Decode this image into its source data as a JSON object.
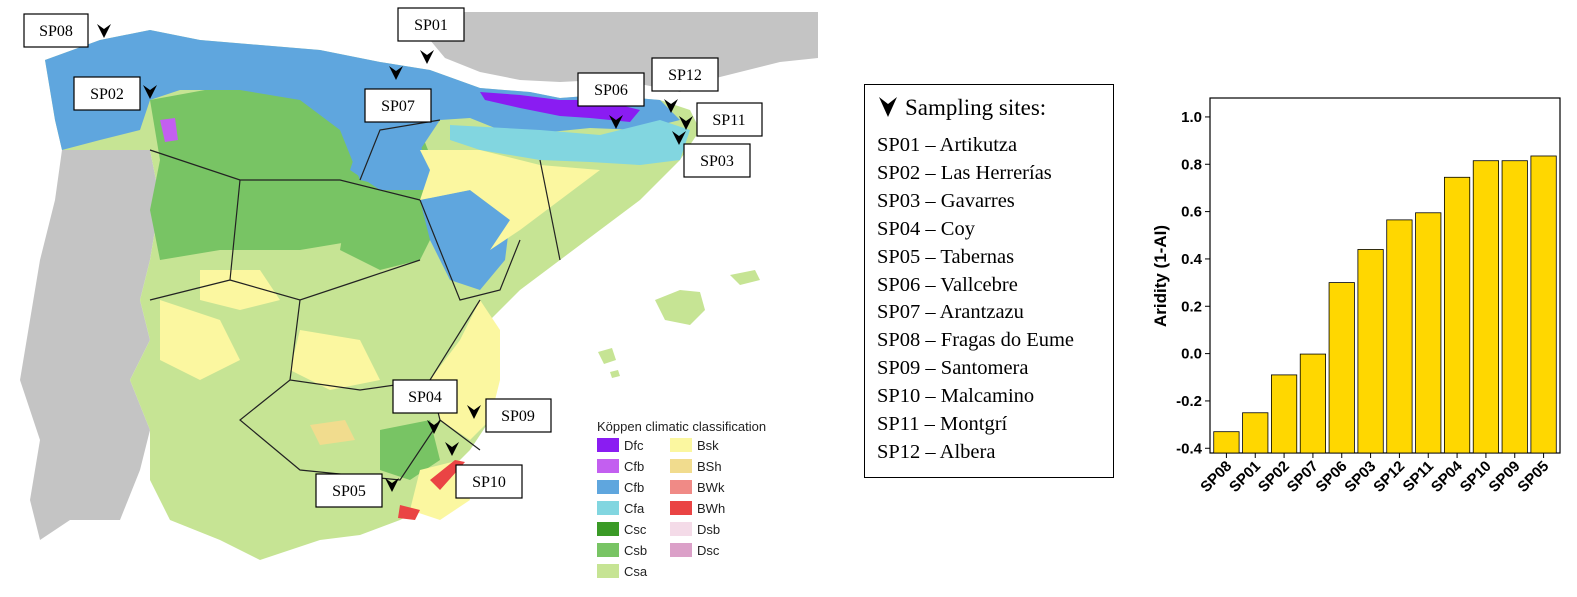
{
  "map": {
    "legend": {
      "title": "Köppen climatic classification",
      "items": [
        {
          "code": "Dfc",
          "color": "#8a1cf2"
        },
        {
          "code": "Cfb",
          "color": "#c35ff0"
        },
        {
          "code": "Cfb",
          "color": "#5fa6de"
        },
        {
          "code": "Cfa",
          "color": "#82d6e0"
        },
        {
          "code": "Csc",
          "color": "#3a9a26"
        },
        {
          "code": "Csb",
          "color": "#78c464"
        },
        {
          "code": "Csa",
          "color": "#c6e494"
        },
        {
          "code": "Bsk",
          "color": "#fbf7a0"
        },
        {
          "code": "BSh",
          "color": "#f1dc8e"
        },
        {
          "code": "BWk",
          "color": "#f08a86"
        },
        {
          "code": "BWh",
          "color": "#ea4444"
        },
        {
          "code": "Dsb",
          "color": "#f4dbe8"
        },
        {
          "code": "Dsc",
          "color": "#dba0c8"
        }
      ]
    },
    "site_labels": [
      "SP08",
      "SP01",
      "SP02",
      "SP07",
      "SP06",
      "SP12",
      "SP11",
      "SP03",
      "SP04",
      "SP09",
      "SP10",
      "SP05"
    ],
    "colors": {
      "land_other": "#c4c4c4",
      "sea": "#ffffff"
    }
  },
  "sites": {
    "title": "Sampling sites:",
    "items": [
      "SP01 – Artikutza",
      "SP02 – Las Herrerías",
      "SP03 – Gavarres",
      "SP04 – Coy",
      "SP05 – Tabernas",
      "SP06 – Vallcebre",
      "SP07 – Arantzazu",
      "SP08 – Fragas do Eume",
      "SP09 – Santomera",
      "SP10 – Malcamino",
      "SP11 – Montgrí",
      "SP12 – Albera"
    ]
  },
  "chart_data": {
    "type": "bar",
    "categories": [
      "SP08",
      "SP01",
      "SP02",
      "SP07",
      "SP06",
      "SP03",
      "SP12",
      "SP11",
      "SP04",
      "SP10",
      "SP09",
      "SP05"
    ],
    "values": [
      -0.33,
      -0.25,
      -0.09,
      -0.002,
      0.3,
      0.44,
      0.565,
      0.595,
      0.745,
      0.815,
      0.815,
      0.835
    ],
    "baseline": -0.42,
    "ylabel": "Aridity (1-AI)",
    "xlabel": "",
    "ylim": [
      -0.42,
      1.08
    ],
    "yticks": [
      -0.4,
      -0.2,
      0.0,
      0.2,
      0.4,
      0.6,
      0.8,
      1.0
    ],
    "ytick_labels": [
      "-0.4",
      "-0.2",
      "0.0",
      "0.2",
      "0.4",
      "0.6",
      "0.8",
      "1.0"
    ],
    "bar_color": "#ffd700",
    "grid": false
  }
}
